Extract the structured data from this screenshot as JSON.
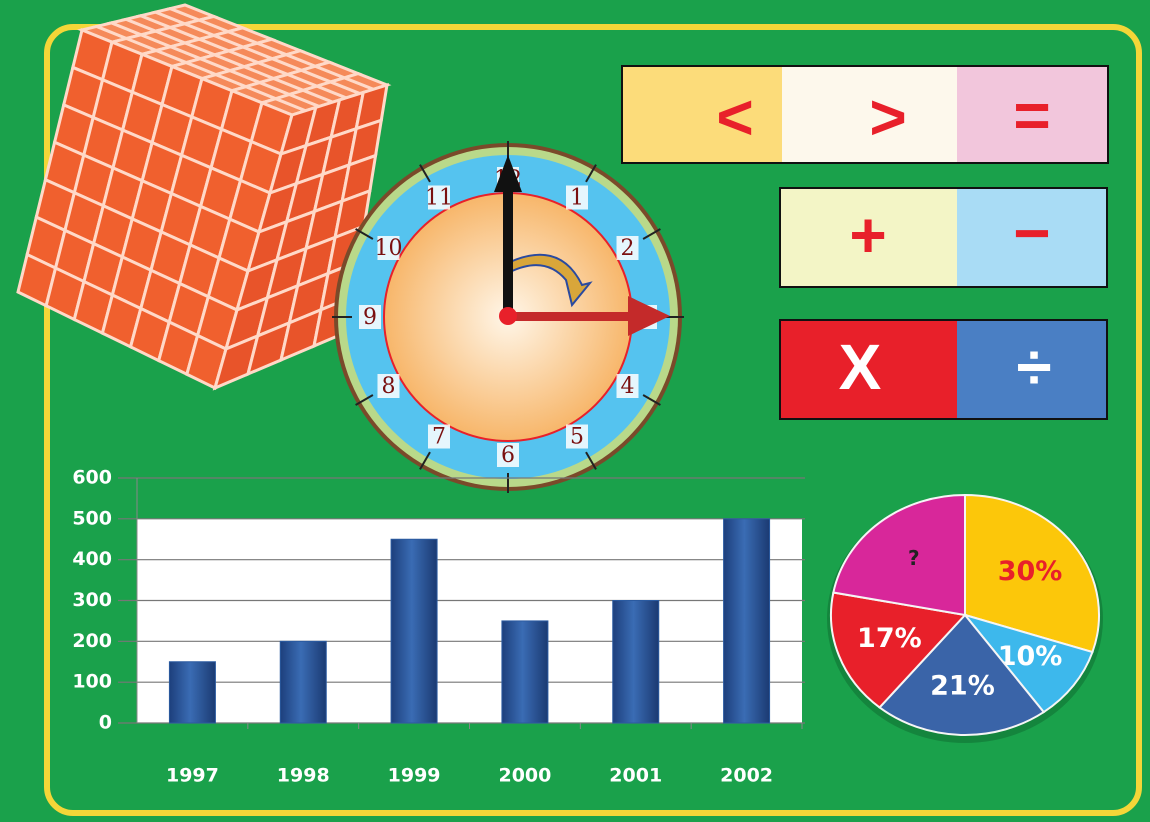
{
  "chart_data": [
    {
      "type": "bar",
      "categories": [
        "1997",
        "1998",
        "1999",
        "2000",
        "2001",
        "2002"
      ],
      "values": [
        150,
        200,
        450,
        250,
        300,
        500
      ],
      "color": "#2a5aa0",
      "ylim": [
        0,
        600
      ],
      "yticks": [
        0,
        100,
        200,
        300,
        400,
        500,
        600
      ],
      "grid": true
    },
    {
      "type": "pie",
      "values": [
        30,
        10,
        21,
        17,
        null
      ],
      "value_labels": [
        "30%",
        "10%",
        "21%",
        "17%",
        "?"
      ],
      "colors": [
        "#fcc70a",
        "#3db8ec",
        "#3a64a8",
        "#e8202a",
        "#d8279a"
      ]
    }
  ],
  "clock": {
    "numbers": [
      "12",
      "1",
      "2",
      "3",
      "4",
      "5",
      "6",
      "7",
      "8",
      "9",
      "10",
      "11"
    ]
  },
  "operators": {
    "row1": [
      "<",
      ">",
      "="
    ],
    "row2": [
      "+",
      "−"
    ],
    "row3": [
      "X",
      "÷"
    ]
  }
}
